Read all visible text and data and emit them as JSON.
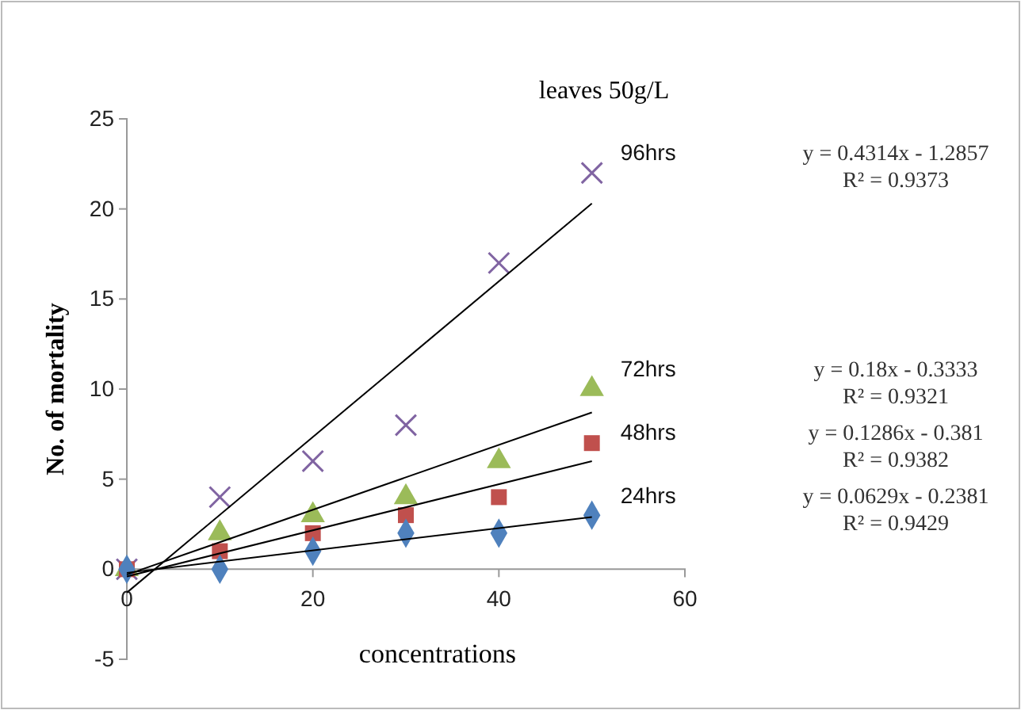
{
  "chart_data": {
    "type": "scatter",
    "title": "leaves 50g/L",
    "xlabel": "concentrations",
    "ylabel": "No. of mortality",
    "x": [
      0,
      10,
      20,
      30,
      40,
      50
    ],
    "xlim": [
      0,
      60
    ],
    "xticks": [
      0,
      20,
      40,
      60
    ],
    "ylim": [
      -5,
      25
    ],
    "yticks": [
      -5,
      0,
      5,
      10,
      15,
      20,
      25
    ],
    "grid": false,
    "series": [
      {
        "name": "96hrs",
        "color": "#8064a2",
        "marker": "cross",
        "values": [
          0,
          4,
          6,
          8,
          17,
          22
        ]
      },
      {
        "name": "72hrs",
        "color": "#9bbb59",
        "marker": "triangle",
        "values": [
          0,
          2,
          3,
          4,
          6,
          10
        ]
      },
      {
        "name": "48hrs",
        "color": "#c0504d",
        "marker": "square",
        "values": [
          0,
          1,
          2,
          3,
          4,
          7
        ]
      },
      {
        "name": "24hrs",
        "color": "#4f81bd",
        "marker": "diamond",
        "values": [
          0,
          0,
          1,
          2,
          2,
          3
        ]
      },
      {
        "type": "line",
        "color": "#000000",
        "values": [
          -1.3,
          null,
          null,
          null,
          null,
          20.3
        ]
      },
      {
        "type": "line",
        "color": "#000000",
        "values": [
          -0.3,
          null,
          null,
          null,
          null,
          8.7
        ]
      },
      {
        "type": "line",
        "color": "#000000",
        "values": [
          -0.4,
          null,
          null,
          null,
          null,
          6.0
        ]
      },
      {
        "type": "line",
        "color": "#000000",
        "values": [
          -0.2,
          null,
          null,
          null,
          null,
          2.9
        ]
      }
    ],
    "annotations": [
      "y = 0.4314x - 1.2857",
      "R² = 0.9373",
      "y = 0.18x - 0.3333",
      "R² = 0.9321",
      "y = 0.1286x - 0.381",
      "R² = 0.9382",
      "y = 0.0629x - 0.2381",
      "R² = 0.9429"
    ]
  }
}
